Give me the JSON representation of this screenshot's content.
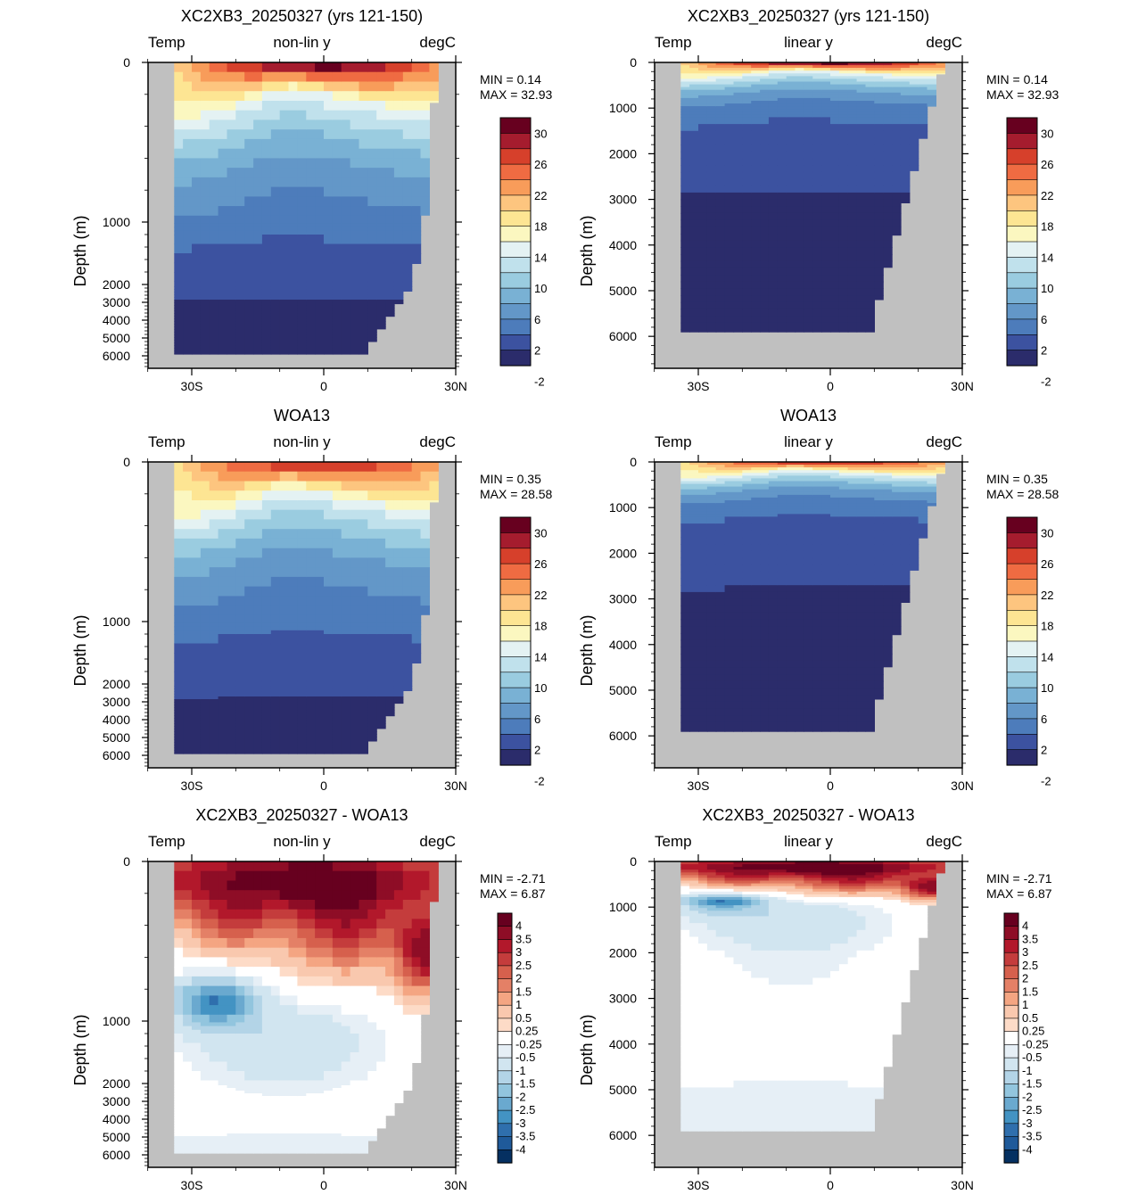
{
  "panels": [
    {
      "id": "p1",
      "row": 0,
      "col": 0,
      "title": "XC2XB3_20250327 (yrs 121-150)",
      "left_label": "Temp",
      "center_label": "non-lin y",
      "right_label": "degC",
      "ylabel": "Depth (m)",
      "min_text": "MIN =  0.14",
      "max_text": "MAX =  32.93",
      "scale": "nonlinear",
      "field": "temp",
      "cbar": "temp"
    },
    {
      "id": "p2",
      "row": 0,
      "col": 1,
      "title": "XC2XB3_20250327 (yrs 121-150)",
      "left_label": "Temp",
      "center_label": "linear y",
      "right_label": "degC",
      "ylabel": "Depth (m)",
      "min_text": "MIN =  0.14",
      "max_text": "MAX =  32.93",
      "scale": "linear",
      "field": "temp",
      "cbar": "temp"
    },
    {
      "id": "p3",
      "row": 1,
      "col": 0,
      "title": "WOA13",
      "left_label": "Temp",
      "center_label": "non-lin y",
      "right_label": "degC",
      "ylabel": "Depth (m)",
      "min_text": "MIN =  0.35",
      "max_text": "MAX =  28.58",
      "scale": "nonlinear",
      "field": "temp",
      "cbar": "temp"
    },
    {
      "id": "p4",
      "row": 1,
      "col": 1,
      "title": "WOA13",
      "left_label": "Temp",
      "center_label": "linear y",
      "right_label": "degC",
      "ylabel": "Depth (m)",
      "min_text": "MIN =  0.35",
      "max_text": "MAX =  28.58",
      "scale": "linear",
      "field": "temp",
      "cbar": "temp"
    },
    {
      "id": "p5",
      "row": 2,
      "col": 0,
      "title": "XC2XB3_20250327 - WOA13",
      "left_label": "Temp",
      "center_label": "non-lin y",
      "right_label": "degC",
      "ylabel": "Depth (m)",
      "min_text": "MIN = -2.71",
      "max_text": "MAX =  6.87",
      "scale": "nonlinear",
      "field": "diff",
      "cbar": "diff"
    },
    {
      "id": "p6",
      "row": 2,
      "col": 1,
      "title": "XC2XB3_20250327 - WOA13",
      "left_label": "Temp",
      "center_label": "linear y",
      "right_label": "degC",
      "ylabel": "Depth (m)",
      "min_text": "MIN = -2.71",
      "max_text": "MAX =  6.87",
      "scale": "linear",
      "field": "diff",
      "cbar": "diff"
    }
  ],
  "colorbars": {
    "temp": {
      "labels": [
        "30",
        "26",
        "22",
        "18",
        "14",
        "10",
        "6",
        "2",
        "-2"
      ],
      "colors": [
        "#67001f",
        "#a51c2e",
        "#d6402b",
        "#ef6b42",
        "#f89c5a",
        "#fdc57f",
        "#fde593",
        "#fbf7c0",
        "#e4f2f3",
        "#c0e1ec",
        "#9acce0",
        "#79b1d4",
        "#6397c8",
        "#4d7cbb",
        "#3c52a0",
        "#2b2c6b"
      ]
    },
    "diff": {
      "labels": [
        "4",
        "3.5",
        "3",
        "2.5",
        "2",
        "1.5",
        "1",
        "0.5",
        "0.25",
        "-0.25",
        "-0.5",
        "-1",
        "-1.5",
        "-2",
        "-2.5",
        "-3",
        "-3.5",
        "-4"
      ],
      "colors": [
        "#67001f",
        "#8e0d26",
        "#b2182b",
        "#c43c3c",
        "#d6604d",
        "#e48066",
        "#f4a582",
        "#f9c8ae",
        "#fddbc7",
        "#ffffff",
        "#e6eff6",
        "#d1e5f0",
        "#b3d4e7",
        "#92c5de",
        "#6aa9cf",
        "#4393c3",
        "#2f6fad",
        "#1f5a9a",
        "#053061"
      ]
    }
  },
  "chart_data": [
    {
      "type": "heatmap",
      "title": "XC2XB3_20250327 (yrs 121-150)",
      "subtitle": "non-lin y",
      "variable": "Temp",
      "units": "degC",
      "ylabel": "Depth (m)",
      "x_ticks": [
        "30S",
        "0",
        "30N"
      ],
      "x_range": [
        -40,
        30
      ],
      "y_ticks": [
        0,
        1000,
        2000,
        3000,
        4000,
        5000,
        6000
      ],
      "y_range": [
        0,
        6700
      ],
      "y_scale": "nonlinear",
      "min": 0.14,
      "max": 32.93
    },
    {
      "type": "heatmap",
      "title": "XC2XB3_20250327 (yrs 121-150)",
      "subtitle": "linear y",
      "variable": "Temp",
      "units": "degC",
      "ylabel": "Depth (m)",
      "x_ticks": [
        "30S",
        "0",
        "30N"
      ],
      "x_range": [
        -40,
        30
      ],
      "y_ticks": [
        0,
        1000,
        2000,
        3000,
        4000,
        5000,
        6000
      ],
      "y_range": [
        0,
        6700
      ],
      "y_scale": "linear",
      "min": 0.14,
      "max": 32.93
    },
    {
      "type": "heatmap",
      "title": "WOA13",
      "subtitle": "non-lin y",
      "variable": "Temp",
      "units": "degC",
      "ylabel": "Depth (m)",
      "x_ticks": [
        "30S",
        "0",
        "30N"
      ],
      "x_range": [
        -40,
        30
      ],
      "y_ticks": [
        0,
        1000,
        2000,
        3000,
        4000,
        5000,
        6000
      ],
      "y_range": [
        0,
        6700
      ],
      "y_scale": "nonlinear",
      "min": 0.35,
      "max": 28.58
    },
    {
      "type": "heatmap",
      "title": "WOA13",
      "subtitle": "linear y",
      "variable": "Temp",
      "units": "degC",
      "ylabel": "Depth (m)",
      "x_ticks": [
        "30S",
        "0",
        "30N"
      ],
      "x_range": [
        -40,
        30
      ],
      "y_ticks": [
        0,
        1000,
        2000,
        3000,
        4000,
        5000,
        6000
      ],
      "y_range": [
        0,
        6700
      ],
      "y_scale": "linear",
      "min": 0.35,
      "max": 28.58
    },
    {
      "type": "heatmap",
      "title": "XC2XB3_20250327 - WOA13",
      "subtitle": "non-lin y",
      "variable": "Temp",
      "units": "degC",
      "ylabel": "Depth (m)",
      "x_ticks": [
        "30S",
        "0",
        "30N"
      ],
      "x_range": [
        -40,
        30
      ],
      "y_ticks": [
        0,
        1000,
        2000,
        3000,
        4000,
        5000,
        6000
      ],
      "y_range": [
        0,
        6700
      ],
      "y_scale": "nonlinear",
      "min": -2.71,
      "max": 6.87
    },
    {
      "type": "heatmap",
      "title": "XC2XB3_20250327 - WOA13",
      "subtitle": "linear y",
      "variable": "Temp",
      "units": "degC",
      "ylabel": "Depth (m)",
      "x_ticks": [
        "30S",
        "0",
        "30N"
      ],
      "x_range": [
        -40,
        30
      ],
      "y_ticks": [
        0,
        1000,
        2000,
        3000,
        4000,
        5000,
        6000
      ],
      "y_range": [
        0,
        6700
      ],
      "y_scale": "linear",
      "min": -2.71,
      "max": 6.87
    }
  ],
  "colors": {
    "land": "#c0c0c0",
    "frame": "#000000"
  }
}
